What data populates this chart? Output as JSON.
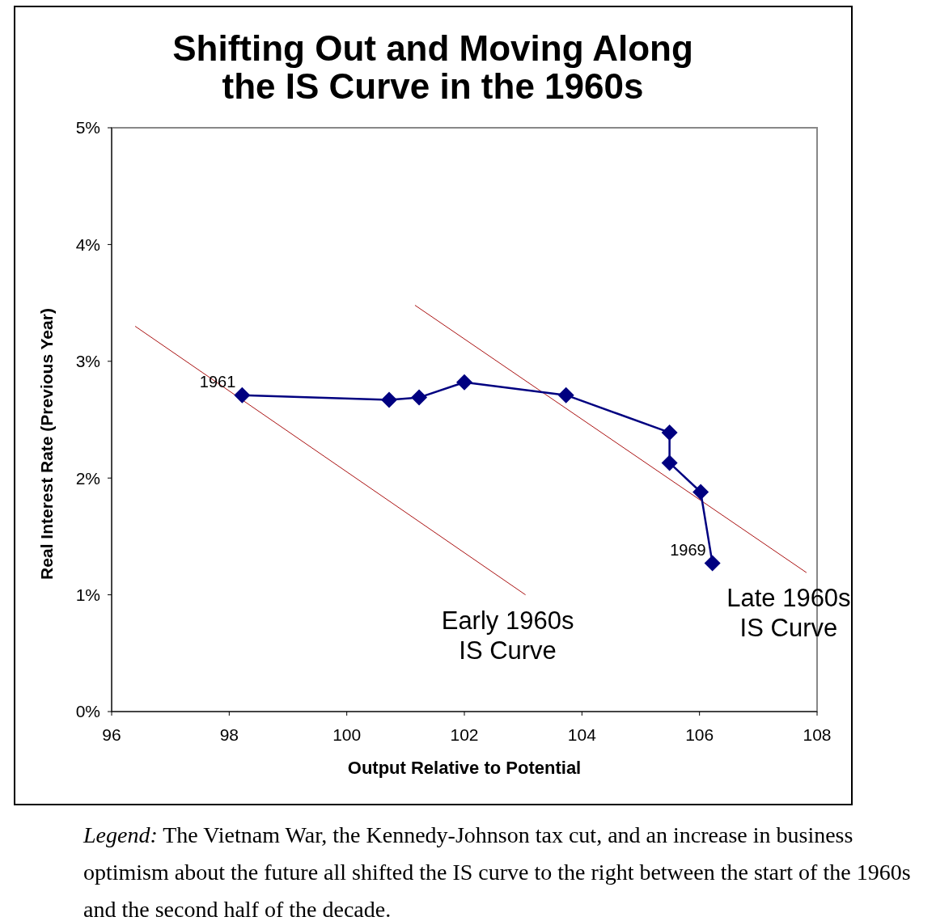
{
  "chart_data": {
    "type": "line",
    "title": "Shifting Out and Moving Along\nthe IS Curve in the 1960s",
    "xlabel": "Output Relative to Potential",
    "ylabel": "Real Interest Rate (Previous Year)",
    "xlim": [
      96,
      108
    ],
    "xticks": [
      96,
      98,
      100,
      102,
      104,
      106,
      108
    ],
    "ylim": [
      0,
      5
    ],
    "yticks": [
      {
        "value": 0,
        "label": "0%"
      },
      {
        "value": 1,
        "label": "1%"
      },
      {
        "value": 2,
        "label": "2%"
      },
      {
        "value": 3,
        "label": "3%"
      },
      {
        "value": 4,
        "label": "4%"
      },
      {
        "value": 5,
        "label": "5%"
      }
    ],
    "grid": false,
    "legend": false,
    "series": [
      {
        "name": "Early 1960s\nIS Curve",
        "color": "#aa1111",
        "marker": "none",
        "x": [
          96.4,
          103.04
        ],
        "values": [
          3.3,
          1.0
        ]
      },
      {
        "name": "Late 1960s\nIS Curve",
        "color": "#aa1111",
        "marker": "none",
        "x": [
          101.16,
          107.82
        ],
        "values": [
          3.48,
          1.19
        ]
      },
      {
        "color": "#000080",
        "marker": "diamond",
        "x": [
          98.22,
          100.72,
          101.23,
          102.0,
          103.73,
          105.49,
          105.49,
          106.02,
          106.22
        ],
        "values": [
          2.71,
          2.67,
          2.69,
          2.82,
          2.71,
          2.39,
          2.13,
          1.88,
          1.27
        ]
      }
    ],
    "annotations": [
      {
        "text": "1961",
        "x": 98.22,
        "y": 2.71
      },
      {
        "text": "1969",
        "x": 106.22,
        "y": 1.27
      },
      "Legend: The Vietnam War, the Kennedy-Johnson tax cut, and an increase in business optimism about the future all shifted the IS curve to the right between the start of the 1960s and the second half of the decade."
    ]
  }
}
